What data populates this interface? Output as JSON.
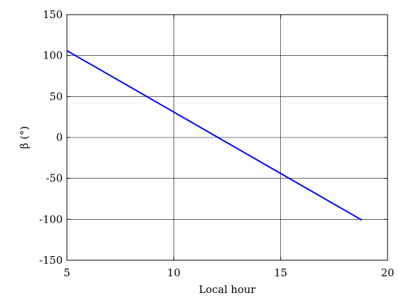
{
  "chart_data": {
    "type": "line",
    "title": "",
    "xlabel": "Local hour",
    "ylabel": "β (°)",
    "xlim": [
      5,
      20
    ],
    "ylim": [
      -150,
      150
    ],
    "xticks": [
      5,
      10,
      15,
      20
    ],
    "yticks": [
      -150,
      -100,
      -50,
      0,
      50,
      100,
      150
    ],
    "xtick_labels": [
      "5",
      "10",
      "15",
      "20"
    ],
    "ytick_labels": [
      "-150",
      "-100",
      "-50",
      "0",
      "50",
      "100",
      "150"
    ],
    "grid": true,
    "series": [
      {
        "color": "#0000ff",
        "x": [
          5.0,
          18.8
        ],
        "y": [
          106,
          -101
        ]
      }
    ]
  }
}
